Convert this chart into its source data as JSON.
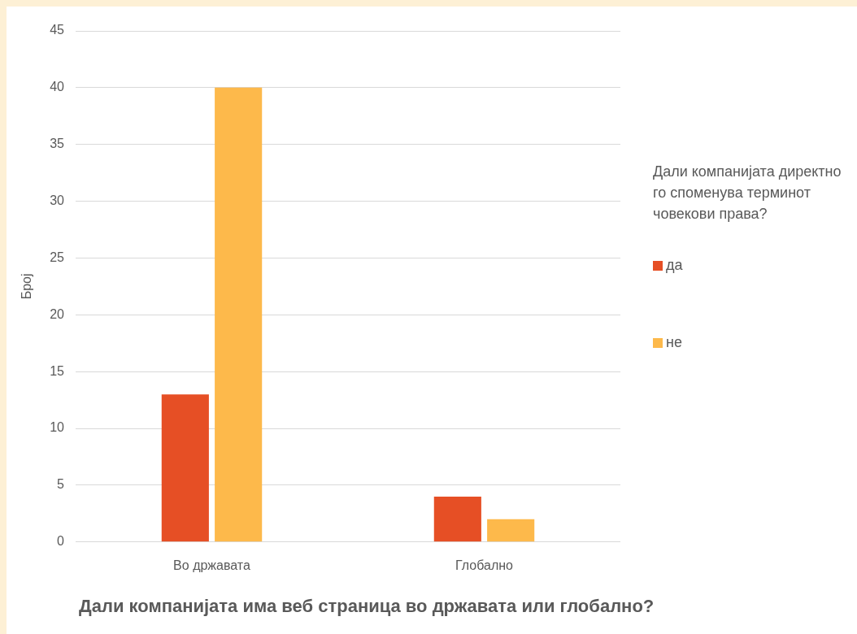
{
  "chart_data": {
    "type": "bar",
    "title": "Дали компанијата има веб страница во државата или глобално?",
    "ylabel": "Број",
    "legend_title": "Дали компанијата директно го споменува терминот човекови права?",
    "categories": [
      "Во државата",
      "Глобално"
    ],
    "series": [
      {
        "name": "да",
        "color": "#e64f25",
        "values": [
          13,
          4
        ]
      },
      {
        "name": "не",
        "color": "#fdb94b",
        "values": [
          40,
          2
        ]
      }
    ],
    "ylim": [
      0,
      45
    ],
    "yticks": [
      0,
      5,
      10,
      15,
      20,
      25,
      30,
      35,
      40,
      45
    ],
    "grid": "y",
    "legend": "right"
  }
}
